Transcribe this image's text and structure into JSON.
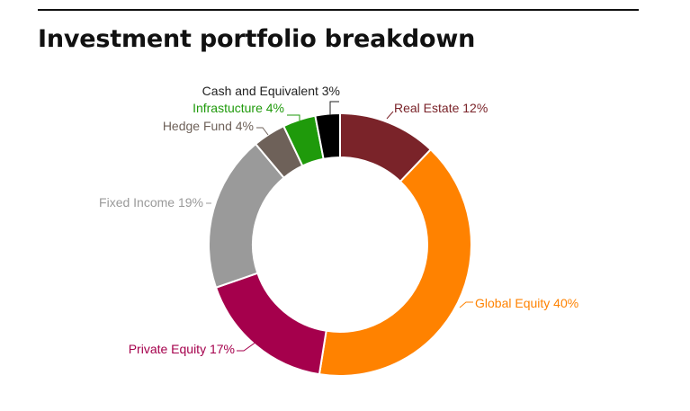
{
  "chart_data": {
    "type": "pie",
    "donut": true,
    "title": "Investment portfolio breakdown",
    "legend": "none",
    "slices": [
      {
        "label": "Real Estate 12%",
        "value": 12,
        "color": "#7a2329",
        "label_color": "#7a2329"
      },
      {
        "label": "Global Equity 40%",
        "value": 40,
        "color": "#ff8200",
        "label_color": "#ff8200"
      },
      {
        "label": "Private Equity 17%",
        "value": 17,
        "color": "#a5004c",
        "label_color": "#a5004c"
      },
      {
        "label": "Fixed Income 19%",
        "value": 19,
        "color": "#9a9a9a",
        "label_color": "#9a9a9a"
      },
      {
        "label": "Hedge Fund 4%",
        "value": 4,
        "color": "#6e6159",
        "label_color": "#6e6159"
      },
      {
        "label": "Infrastucture 4%",
        "value": 4,
        "color": "#1f9a0b",
        "label_color": "#1f9a0b"
      },
      {
        "label": "Cash and Equivalent 3%",
        "value": 3,
        "color": "#000000",
        "label_color": "#222222"
      }
    ]
  }
}
